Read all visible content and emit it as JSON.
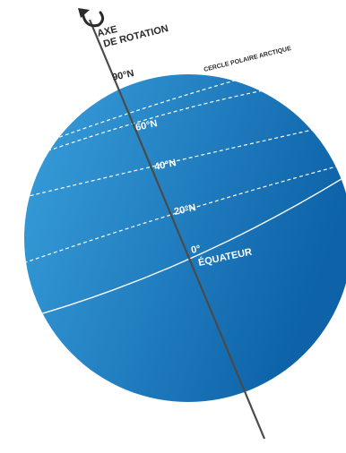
{
  "colors": {
    "globe_light": "#3aa0dc",
    "globe_dark": "#0d62a8",
    "axis": "#4a4a4a",
    "line": "#ffffff",
    "text_dark": "#2b2b2b"
  },
  "axis": {
    "label_line1": "AXE",
    "label_line2": "DE ROTATION",
    "rotation_icon": "rotation-arrow-icon"
  },
  "parallels": {
    "arctic_circle": "CERCLE POLAIRE ARCTIQUE",
    "pole": "90°N",
    "lat60": "60°N",
    "lat40": "40°N",
    "lat20": "20°N",
    "equator_degree": "0°",
    "equator_name": "ÉQUATEUR"
  }
}
